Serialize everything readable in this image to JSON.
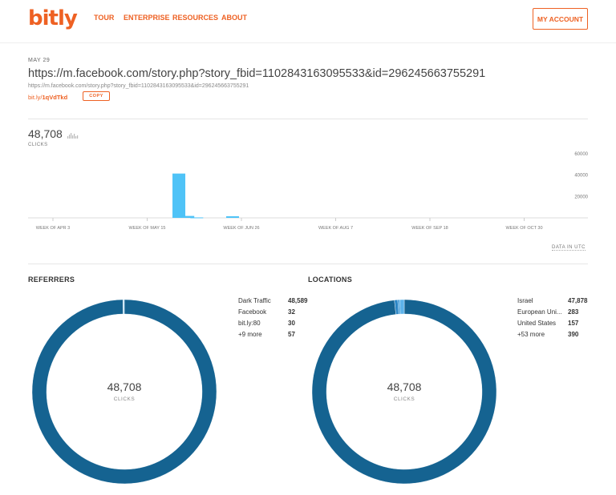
{
  "header": {
    "logo": "bitly",
    "nav": [
      "TOUR",
      "ENTERPRISE",
      "RESOURCES",
      "ABOUT"
    ],
    "account_label": "MY ACCOUNT",
    "brand_color": "#ee6123"
  },
  "link": {
    "date": "MAY 29",
    "long_url": "https://m.facebook.com/story.php?story_fbid=1102843163095533&id=296245663755291",
    "long_url_sub": "https://m.facebook.com/story.php?story_fbid=1102843163095533&id=296245663755291",
    "short_prefix": "bit.ly/",
    "short_code": "1qVdTkd",
    "copy_label": "COPY"
  },
  "stats": {
    "total": "48,708",
    "clicks_label": "CLICKS",
    "utc_label": "DATA IN UTC"
  },
  "chart_data": {
    "type": "bar",
    "title": "",
    "xlabel": "",
    "ylabel": "",
    "ylim": [
      0,
      60000
    ],
    "y_ticks": [
      "60000",
      "40000",
      "20000"
    ],
    "x_tick_labels": [
      "WEEK OF APR 3",
      "WEEK OF MAY 15",
      "WEEK OF JUN 26",
      "WEEK OF AUG 7",
      "WEEK OF SEP 18",
      "WEEK OF OCT 30"
    ],
    "bars": [
      {
        "week_index": 16,
        "value": 41500
      },
      {
        "week_index": 17,
        "value": 1800
      },
      {
        "week_index": 18,
        "value": 400
      },
      {
        "week_index": 22,
        "value": 1500
      }
    ],
    "color": "#4fc3f7"
  },
  "referrers": {
    "title": "REFERRERS",
    "total": "48,708",
    "clicks_label": "CLICKS",
    "items": [
      {
        "name": "Dark Traffic",
        "value": "48,589"
      },
      {
        "name": "Facebook",
        "value": "32"
      },
      {
        "name": "bit.ly:80",
        "value": "30"
      },
      {
        "name": "+9 more",
        "value": "57"
      }
    ],
    "slices": [
      48589,
      32,
      30,
      57
    ]
  },
  "locations": {
    "title": "LOCATIONS",
    "total": "48,708",
    "clicks_label": "CLICKS",
    "items": [
      {
        "name": "Israel",
        "value": "47,878"
      },
      {
        "name": "European Uni...",
        "value": "283"
      },
      {
        "name": "United States",
        "value": "157"
      },
      {
        "name": "+53 more",
        "value": "390"
      }
    ],
    "slices": [
      47878,
      283,
      157,
      390
    ]
  },
  "colors": {
    "donut_main": "#156391",
    "donut_alts": [
      "#2b86c5",
      "#3d9ad8",
      "#5db3ea"
    ]
  }
}
